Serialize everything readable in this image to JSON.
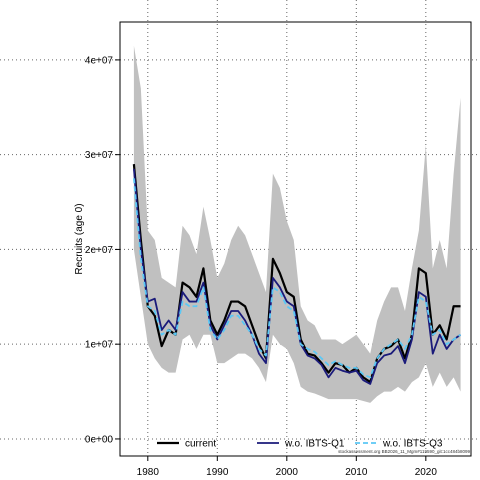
{
  "chart_data": {
    "type": "line",
    "ylabel": "Recruits (age 0)",
    "xlabel": "",
    "xlim": [
      1976,
      2026.5
    ],
    "ylim": [
      -1800000,
      44000000
    ],
    "x_ticks": [
      1980,
      1990,
      2000,
      2010,
      2020
    ],
    "x_tick_labels": [
      "1980",
      "1990",
      "2000",
      "2010",
      "2020"
    ],
    "y_ticks": [
      0,
      10000000,
      20000000,
      30000000,
      40000000
    ],
    "y_tick_labels": [
      "0e+00",
      "1e+07",
      "2e+07",
      "3e+07",
      "4e+07"
    ],
    "grid": true,
    "legend_position": "bottom",
    "footer": "stockassessment.org BB2026_11_Mgm#119590_git:1cc484b8099",
    "x": [
      1978,
      1979,
      1980,
      1981,
      1982,
      1983,
      1984,
      1985,
      1986,
      1987,
      1988,
      1989,
      1990,
      1991,
      1992,
      1993,
      1994,
      1995,
      1996,
      1997,
      1998,
      1999,
      2000,
      2001,
      2002,
      2003,
      2004,
      2005,
      2006,
      2007,
      2008,
      2009,
      2010,
      2011,
      2012,
      2013,
      2014,
      2015,
      2016,
      2017,
      2018,
      2019,
      2020,
      2021,
      2022,
      2023,
      2024,
      2025
    ],
    "band": {
      "name": "confidence interval",
      "color": "#c0c0c0",
      "lower": [
        20000000,
        15000000,
        10000000,
        8500000,
        7500000,
        7000000,
        7000000,
        10500000,
        11000000,
        9500000,
        11000000,
        11000000,
        8000000,
        8000000,
        8500000,
        9000000,
        9000000,
        8500000,
        7500000,
        6000000,
        11000000,
        10000000,
        9500000,
        8000000,
        5500000,
        5000000,
        4800000,
        4500000,
        4200000,
        4200000,
        4200000,
        4200000,
        4200000,
        4000000,
        3800000,
        4500000,
        5000000,
        5000000,
        5500000,
        5000000,
        6000000,
        6500000,
        8000000,
        5500000,
        7000000,
        5500000,
        6500000,
        5000000
      ],
      "upper": [
        41500000,
        37000000,
        22000000,
        21000000,
        17000000,
        16500000,
        16000000,
        22500000,
        21500000,
        19500000,
        24500000,
        21000000,
        17000000,
        18500000,
        21000000,
        22500000,
        21500000,
        19500000,
        17500000,
        15500000,
        28000000,
        26500000,
        23000000,
        21000000,
        14000000,
        12500000,
        12000000,
        10500000,
        10500000,
        10500000,
        10000000,
        10500000,
        11000000,
        10000000,
        9000000,
        12500000,
        14500000,
        16000000,
        16000000,
        13500000,
        18000000,
        22000000,
        31000000,
        18000000,
        21000000,
        18000000,
        28000000,
        36000000
      ]
    },
    "series": [
      {
        "name": "current",
        "color": "#000000",
        "dash": "",
        "width": 2.2,
        "values": [
          29000000,
          21000000,
          14000000,
          13000000,
          9800000,
          11500000,
          11000000,
          16500000,
          16000000,
          15000000,
          18000000,
          12500000,
          11000000,
          12500000,
          14500000,
          14500000,
          14000000,
          12000000,
          10000000,
          8500000,
          19000000,
          17500000,
          15500000,
          15000000,
          10500000,
          9000000,
          8800000,
          8000000,
          7000000,
          8000000,
          7800000,
          7000000,
          7500000,
          6500000,
          6000000,
          8500000,
          9500000,
          9800000,
          10500000,
          8500000,
          11000000,
          18000000,
          17500000,
          11000000,
          12000000,
          10500000,
          14000000,
          14000000
        ]
      },
      {
        "name": "w.o. IBTS-Q1",
        "color": "#1a1a7a",
        "dash": "",
        "width": 1.8,
        "values": [
          28500000,
          20000000,
          14500000,
          14800000,
          11500000,
          12500000,
          11500000,
          15500000,
          14500000,
          14500000,
          16500000,
          12000000,
          10500000,
          12000000,
          13500000,
          13500000,
          12500000,
          11000000,
          9000000,
          8000000,
          17000000,
          16000000,
          14500000,
          14000000,
          10000000,
          8800000,
          8500000,
          7800000,
          6500000,
          7500000,
          7200000,
          7000000,
          7200000,
          6200000,
          5800000,
          8000000,
          8800000,
          9000000,
          9800000,
          8000000,
          10500000,
          15500000,
          15000000,
          9000000,
          11000000,
          9500000,
          10500000,
          11000000
        ]
      },
      {
        "name": "w.o. IBTS-Q3",
        "color": "#5bc8f5",
        "dash": "5,3",
        "width": 1.8,
        "values": [
          27500000,
          19000000,
          14000000,
          13500000,
          11000000,
          11500000,
          11000000,
          14500000,
          14000000,
          14000000,
          16000000,
          11500000,
          10500000,
          11500000,
          13000000,
          13000000,
          12000000,
          11000000,
          9500000,
          8800000,
          16000000,
          15500000,
          14000000,
          13500000,
          10000000,
          9500000,
          9200000,
          8500000,
          7800000,
          8200000,
          7800000,
          7500000,
          7500000,
          6800000,
          6500000,
          8500000,
          9500000,
          10000000,
          10500000,
          9500000,
          11000000,
          15000000,
          14500000,
          11000000,
          11500000,
          10000000,
          10500000,
          11000000
        ]
      }
    ]
  }
}
